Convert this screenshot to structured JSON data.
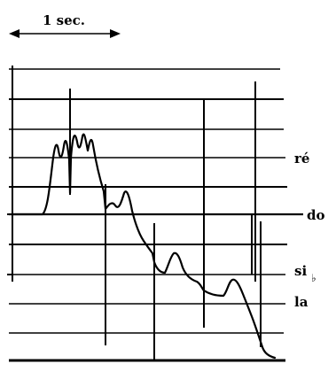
{
  "scale": {
    "label": "1 sec."
  },
  "note_labels": {
    "re": "ré",
    "do": "do",
    "si_flat": "si",
    "flat_sign": "♭",
    "la": "la"
  },
  "colors": {
    "ink": "#000000",
    "background": "#ffffff"
  }
}
